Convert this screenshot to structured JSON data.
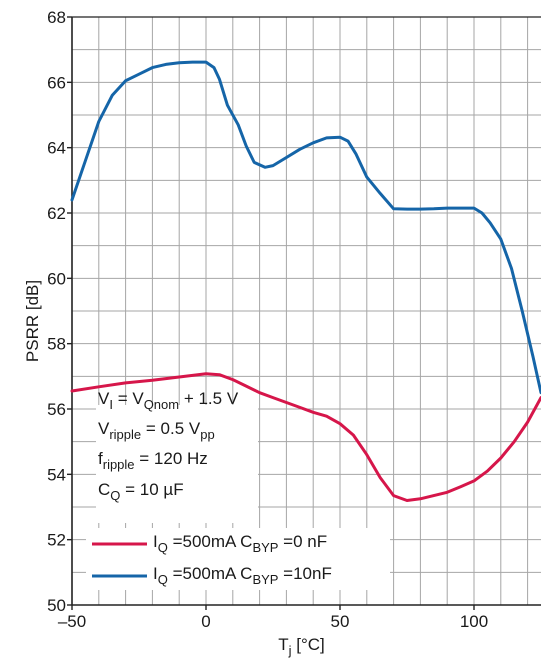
{
  "chart_data": {
    "type": "line",
    "xlabel": {
      "main": "T",
      "sub": "j",
      "tail": " [°C]"
    },
    "ylabel": "PSRR [dB]",
    "xlim": [
      -50,
      125
    ],
    "ylim": [
      50,
      68
    ],
    "xticks": [
      -50,
      0,
      50,
      100
    ],
    "xtick_labels": [
      "–50",
      "0",
      "50",
      "100"
    ],
    "yticks": [
      50,
      52,
      54,
      56,
      58,
      60,
      62,
      64,
      66,
      68
    ],
    "grid": true,
    "conditions": [
      {
        "main": "V",
        "sub": "I",
        "tail": " = V",
        "sub2": "Qnom",
        "tail2": " + 1.5 V"
      },
      {
        "main": "V",
        "sub": "ripple",
        "tail": " = 0.5 V",
        "sub2": "pp",
        "tail2": ""
      },
      {
        "main": "f",
        "sub": "ripple",
        "tail": " = 120 Hz",
        "sub2": "",
        "tail2": ""
      },
      {
        "main": "C",
        "sub": "Q",
        "tail": " = 10 µF",
        "sub2": "",
        "tail2": ""
      }
    ],
    "legend_position": "bottom-left",
    "series": [
      {
        "label": {
          "a": "I",
          "a_sub": "Q",
          "b": " =500mA C",
          "b_sub": "BYP",
          "c": " =0 nF"
        },
        "color": "#d6164a",
        "x": [
          -50,
          -40,
          -30,
          -20,
          -10,
          0,
          5,
          10,
          15,
          20,
          25,
          30,
          35,
          40,
          45,
          50,
          55,
          60,
          65,
          70,
          75,
          80,
          85,
          90,
          95,
          100,
          105,
          110,
          115,
          120,
          125
        ],
        "y": [
          56.55,
          56.68,
          56.8,
          56.88,
          56.98,
          57.08,
          57.05,
          56.9,
          56.7,
          56.5,
          56.35,
          56.2,
          56.05,
          55.9,
          55.78,
          55.55,
          55.2,
          54.6,
          53.9,
          53.35,
          53.2,
          53.25,
          53.35,
          53.45,
          53.62,
          53.8,
          54.1,
          54.5,
          55.0,
          55.6,
          56.35
        ]
      },
      {
        "label": {
          "a": "I",
          "a_sub": "Q",
          "b": " =500mA C",
          "b_sub": "BYP",
          "c": " =10nF"
        },
        "color": "#1565a8",
        "x": [
          -50,
          -45,
          -40,
          -35,
          -30,
          -25,
          -20,
          -15,
          -10,
          -5,
          0,
          3,
          5,
          8,
          12,
          15,
          18,
          22,
          25,
          30,
          35,
          40,
          45,
          50,
          53,
          56,
          60,
          65,
          70,
          75,
          80,
          85,
          90,
          95,
          100,
          103,
          106,
          110,
          114,
          118,
          122,
          125
        ],
        "y": [
          62.4,
          63.6,
          64.8,
          65.6,
          66.05,
          66.25,
          66.45,
          66.55,
          66.6,
          66.62,
          66.62,
          66.45,
          66.1,
          65.3,
          64.7,
          64.05,
          63.55,
          63.4,
          63.45,
          63.7,
          63.95,
          64.15,
          64.3,
          64.32,
          64.2,
          63.8,
          63.1,
          62.6,
          62.13,
          62.12,
          62.12,
          62.13,
          62.15,
          62.15,
          62.15,
          62.0,
          61.7,
          61.2,
          60.3,
          59.0,
          57.6,
          56.5
        ]
      }
    ]
  }
}
